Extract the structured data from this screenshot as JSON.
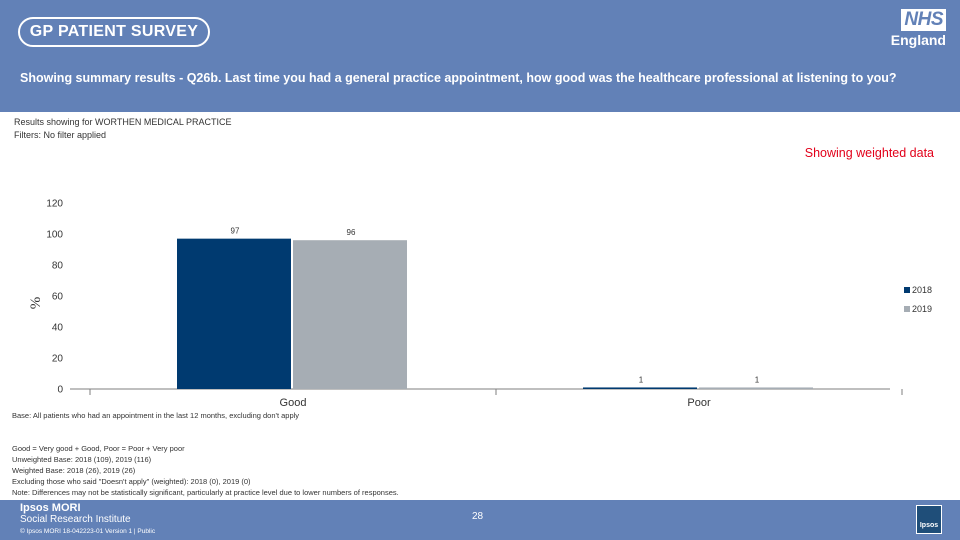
{
  "header": {
    "survey_title": "GP PATIENT SURVEY",
    "nhs_logo_text": "NHS",
    "nhs_region": "England",
    "question": "Showing summary results - Q26b. Last time you had a general practice appointment, how good was the healthcare professional at listening to you?"
  },
  "meta": {
    "results_for": "Results showing for WORTHEN MEDICAL PRACTICE",
    "filters": "Filters: No filter applied",
    "weighted_label": "Showing weighted data"
  },
  "colors": {
    "series_2018": "#003a70",
    "series_2019": "#a6adb4",
    "banner": "#6281b7",
    "accent": "#e2001a"
  },
  "chart_data": {
    "type": "bar",
    "categories": [
      "Good",
      "Poor"
    ],
    "series": [
      {
        "name": "2018",
        "values": [
          97,
          1
        ]
      },
      {
        "name": "2019",
        "values": [
          96,
          1
        ]
      }
    ],
    "ylabel": "%",
    "ylim": [
      0,
      120
    ],
    "yticks": [
      0,
      20,
      40,
      60,
      80,
      100,
      120
    ],
    "legend": "right",
    "grid": false
  },
  "notes": {
    "base": "Base: All patients who had an appointment in the last 12 months, excluding don't apply",
    "lines": [
      "Good = Very good + Good, Poor = Poor + Very poor",
      "Unweighted Base: 2018 (109), 2019 (116)",
      "Weighted Base: 2018 (26), 2019 (26)",
      "Excluding those who said \"Doesn't apply\" (weighted): 2018 (0), 2019 (0)",
      "Note: Differences may not be statistically significant, particularly at practice level due to lower numbers of responses."
    ]
  },
  "footer": {
    "company": "Ipsos MORI",
    "division": "Social Research Institute",
    "copyright": "© Ipsos MORI 18-042223-01 Version 1 | Public",
    "page_number": "28",
    "badge": "Ipsos"
  }
}
